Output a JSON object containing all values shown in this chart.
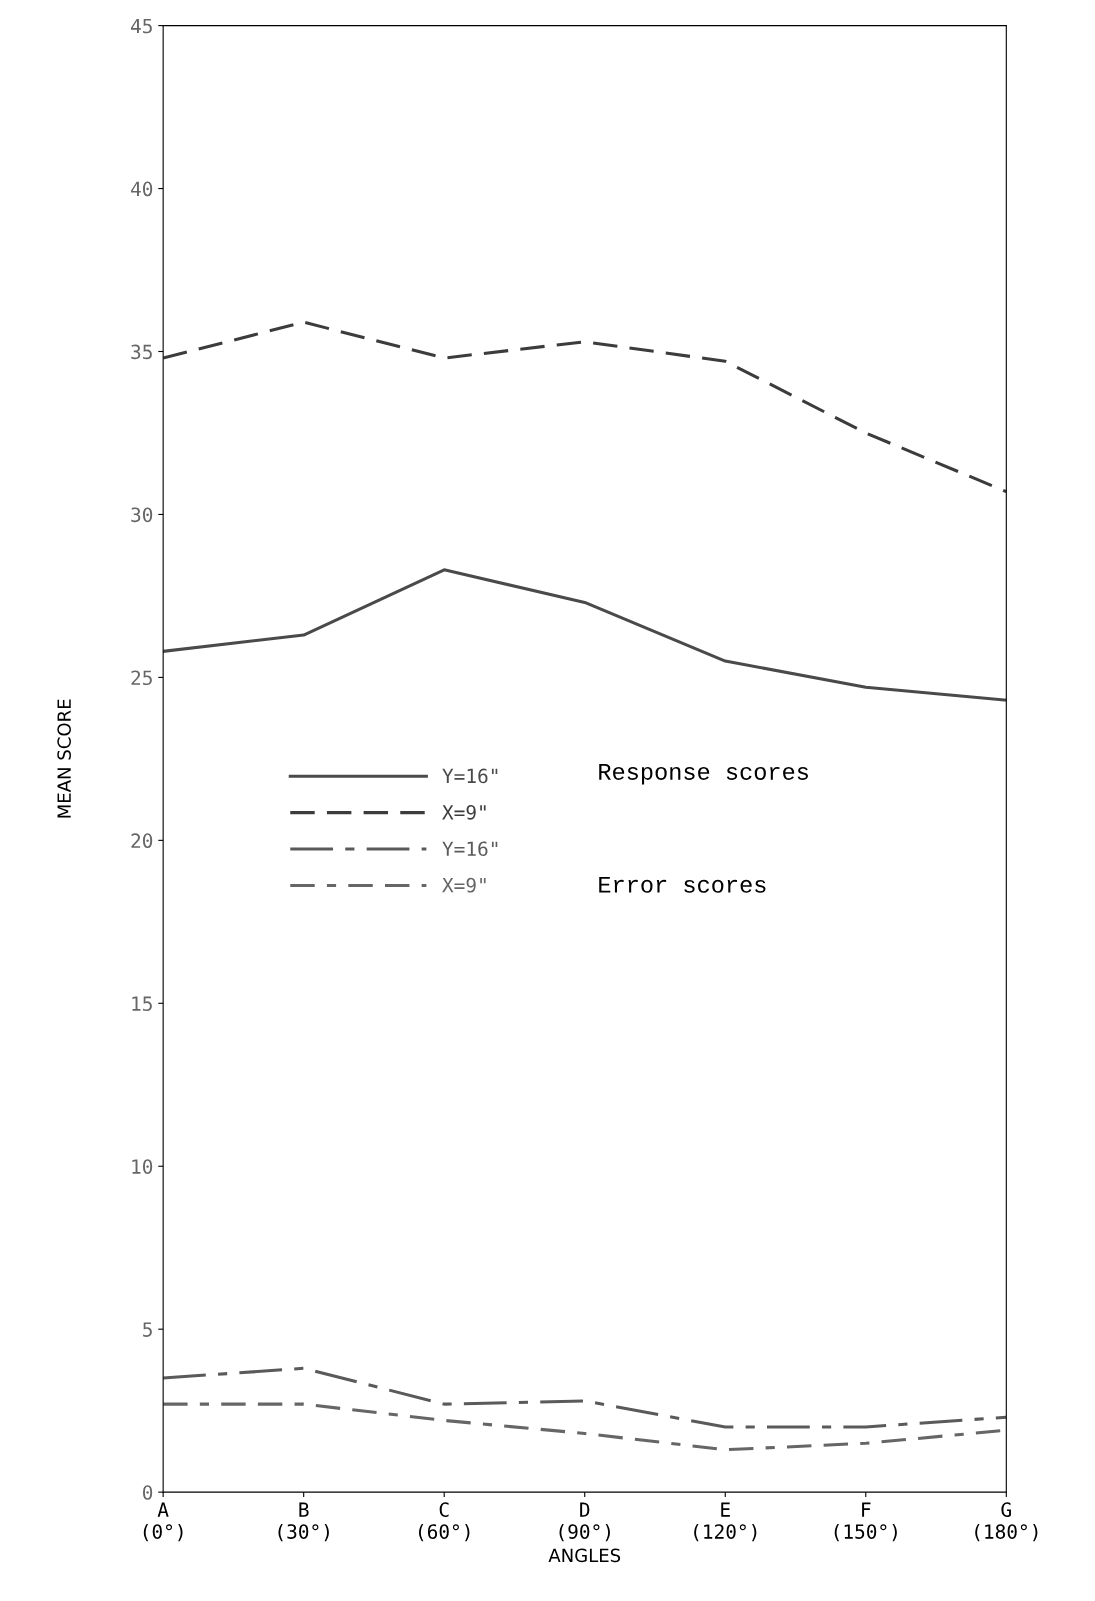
{
  "chart_data": {
    "type": "line",
    "xlabel": "ANGLES",
    "ylabel": "MEAN SCORE",
    "categories": [
      "A\n(0°)",
      "B\n(30°)",
      "C\n(60°)",
      "D\n(90°)",
      "E\n(120°)",
      "F\n(150°)",
      "G\n(180°)"
    ],
    "series": [
      {
        "name": "Y=16\"",
        "color": "#4a4a4a",
        "line_style": "solid",
        "values": [
          25.8,
          26.3,
          28.3,
          27.3,
          25.5,
          24.7,
          24.3
        ]
      },
      {
        "name": "X=9\"",
        "color": "#3c3c3c",
        "line_style": "dashed",
        "values": [
          34.8,
          35.9,
          34.8,
          35.3,
          34.7,
          32.5,
          30.7
        ]
      },
      {
        "name": "Y=16\"",
        "color": "#5a5a5a",
        "line_style": "dashdot",
        "values": [
          3.5,
          3.8,
          2.7,
          2.8,
          2.0,
          2.0,
          2.3
        ]
      },
      {
        "name": "X=9\"",
        "color": "#666666",
        "line_style": "dashdot_long",
        "values": [
          2.7,
          2.7,
          2.2,
          1.8,
          1.3,
          1.5,
          1.9
        ]
      }
    ],
    "ylim": [
      0,
      45
    ],
    "yticks": [
      0,
      5,
      10,
      15,
      20,
      25,
      30,
      35,
      40,
      45
    ],
    "grid": false,
    "marker": "none",
    "legend": "center left",
    "annotations": [
      "Response scores",
      "Error scores"
    ]
  }
}
